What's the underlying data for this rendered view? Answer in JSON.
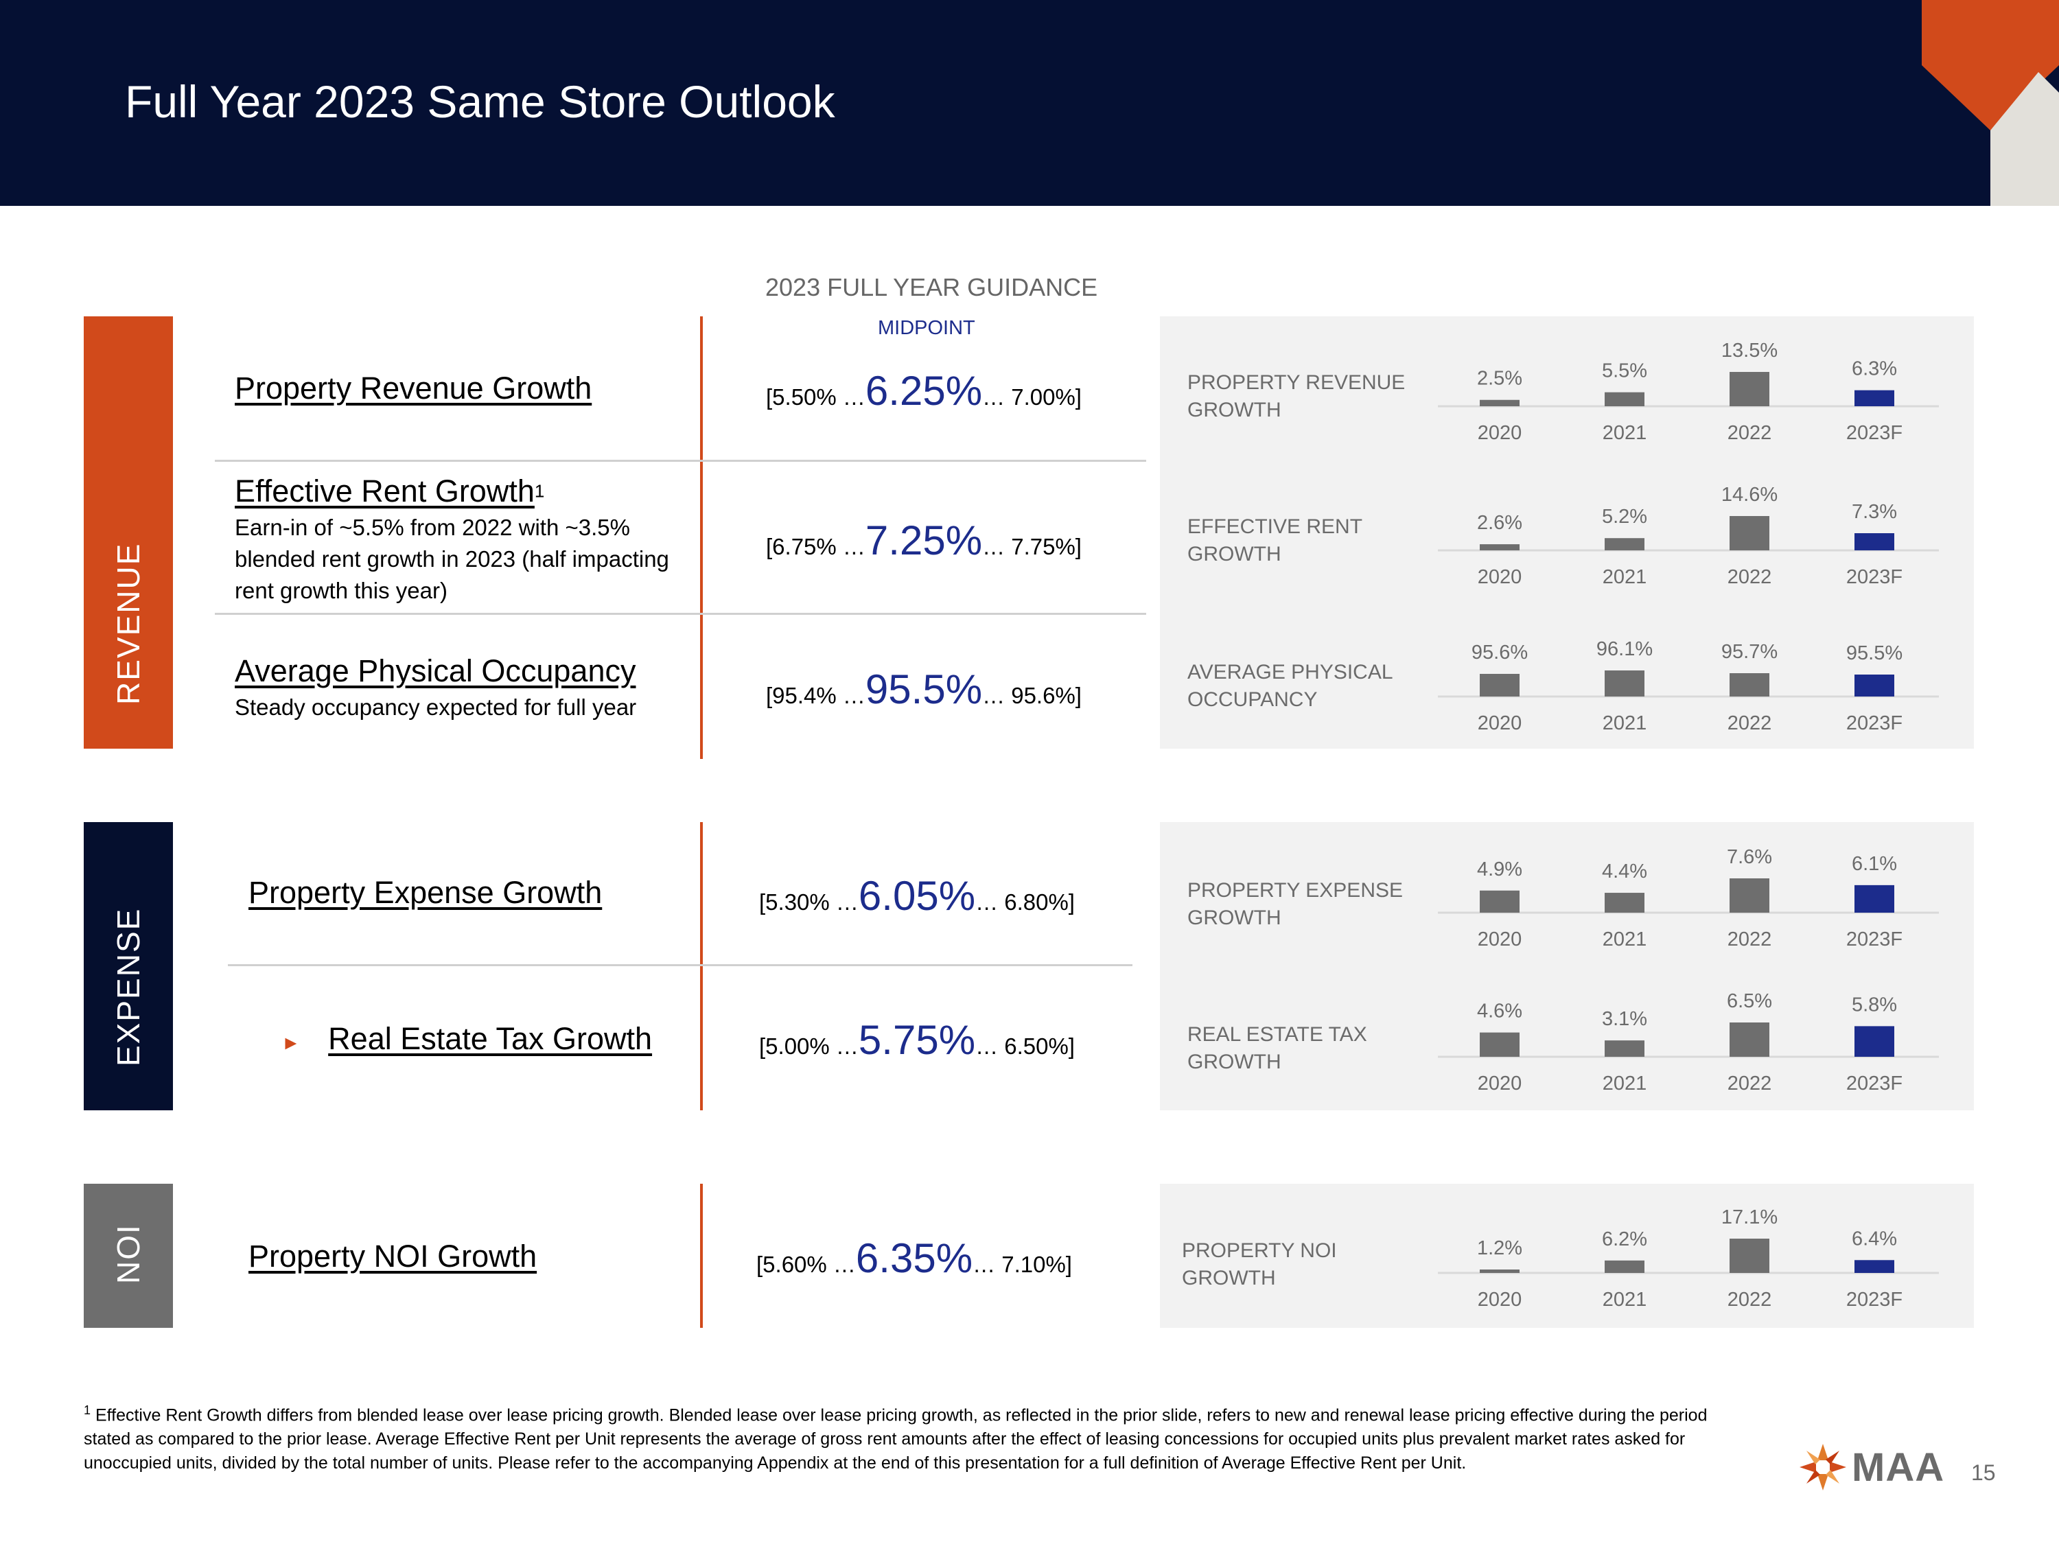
{
  "header": {
    "title": "Full Year 2023 Same Store Outlook"
  },
  "bands": {
    "revenue": "REVENUE",
    "expense": "EXPENSE",
    "noi": "NOI"
  },
  "guidance_header": {
    "title": "2023 FULL YEAR GUIDANCE",
    "midpoint": "MIDPOINT"
  },
  "metrics": [
    {
      "name": "Property Revenue Growth",
      "sup": "",
      "desc": "",
      "low": "[5.50% …",
      "mid": "6.25%",
      "high": "… 7.00%]"
    },
    {
      "name": "Effective Rent Growth",
      "sup": "1",
      "desc": "Earn-in of ~5.5% from 2022 with ~3.5% blended rent growth in 2023 (half impacting rent growth this year)",
      "low": "[6.75% …",
      "mid": "7.25%",
      "high": "… 7.75%]"
    },
    {
      "name": "Average Physical Occupancy",
      "sup": "",
      "desc": "Steady occupancy expected for full year",
      "low": "[95.4% …",
      "mid": "95.5%",
      "high": "… 95.6%]"
    },
    {
      "name": "Property Expense Growth",
      "sup": "",
      "desc": "",
      "low": "[5.30% …",
      "mid": "6.05%",
      "high": "… 6.80%]"
    },
    {
      "name": "Real Estate Tax Growth",
      "sup": "",
      "desc": "",
      "low": "[5.00% …",
      "mid": "5.75%",
      "high": "… 6.50%]"
    },
    {
      "name": "Property NOI Growth",
      "sup": "",
      "desc": "",
      "low": "[5.60% …",
      "mid": "6.35%",
      "high": "… 7.10%]"
    }
  ],
  "colors": {
    "actual": "#6e6e6e",
    "forecast": "#1c2c8c",
    "accent": "#d14a1b",
    "navy": "#051033"
  },
  "chart_data": [
    {
      "type": "bar",
      "title": "PROPERTY REVENUE GROWTH",
      "categories": [
        "2020",
        "2021",
        "2022",
        "2023F"
      ],
      "values": [
        2.5,
        5.5,
        13.5,
        6.3
      ],
      "labels": [
        "2.5%",
        "5.5%",
        "13.5%",
        "6.3%"
      ]
    },
    {
      "type": "bar",
      "title": "EFFECTIVE RENT GROWTH",
      "categories": [
        "2020",
        "2021",
        "2022",
        "2023F"
      ],
      "values": [
        2.6,
        5.2,
        14.6,
        7.3
      ],
      "labels": [
        "2.6%",
        "5.2%",
        "14.6%",
        "7.3%"
      ]
    },
    {
      "type": "bar",
      "title": "AVERAGE PHYSICAL OCCUPANCY",
      "categories": [
        "2020",
        "2021",
        "2022",
        "2023F"
      ],
      "values": [
        95.6,
        96.1,
        95.7,
        95.5
      ],
      "labels": [
        "95.6%",
        "96.1%",
        "95.7%",
        "95.5%"
      ]
    },
    {
      "type": "bar",
      "title": "PROPERTY EXPENSE GROWTH",
      "categories": [
        "2020",
        "2021",
        "2022",
        "2023F"
      ],
      "values": [
        4.9,
        4.4,
        7.6,
        6.1
      ],
      "labels": [
        "4.9%",
        "4.4%",
        "7.6%",
        "6.1%"
      ]
    },
    {
      "type": "bar",
      "title": "REAL ESTATE TAX GROWTH",
      "categories": [
        "2020",
        "2021",
        "2022",
        "2023F"
      ],
      "values": [
        4.6,
        3.1,
        6.5,
        5.8
      ],
      "labels": [
        "4.6%",
        "3.1%",
        "6.5%",
        "5.8%"
      ]
    },
    {
      "type": "bar",
      "title": "PROPERTY NOI GROWTH",
      "categories": [
        "2020",
        "2021",
        "2022",
        "2023F"
      ],
      "values": [
        1.2,
        6.2,
        17.1,
        6.4
      ],
      "labels": [
        "1.2%",
        "6.2%",
        "17.1%",
        "6.4%"
      ]
    }
  ],
  "footnote": {
    "sup": "1",
    "text": "Effective Rent Growth differs from blended lease over lease pricing growth. Blended lease over lease pricing growth, as reflected in the prior slide, refers to new and renewal lease pricing effective during the period stated as compared to the prior lease. Average Effective Rent per Unit represents the average of gross rent amounts after the effect of leasing concessions for occupied units plus prevalent market rates asked for unoccupied units, divided by the total number of units. Please refer to the accompanying Appendix at the end of this presentation for a full definition of Average Effective Rent per Unit."
  },
  "logo": {
    "text": "MAA"
  },
  "page_number": "15"
}
